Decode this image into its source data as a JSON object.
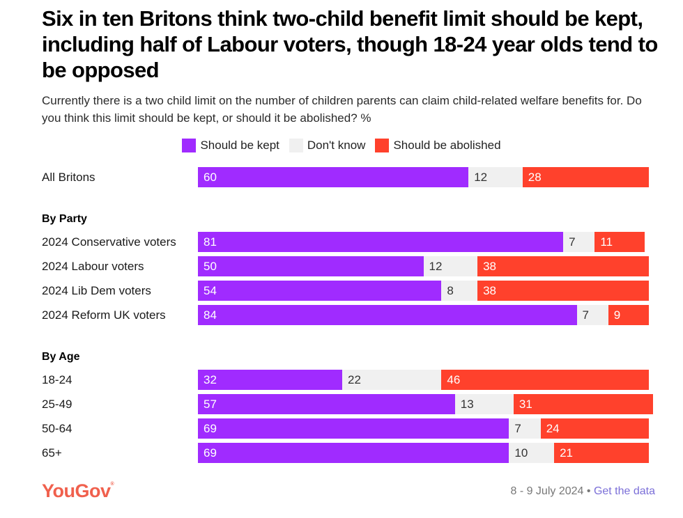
{
  "header": {
    "title": "Six in ten Britons think two-child benefit limit should be kept, including half of Labour voters, though 18-24 year olds tend to be opposed",
    "subtitle": "Currently there is a two child limit on the number of children parents can claim child-related welfare benefits for. Do you think this limit should be kept, or should it be abolished? %"
  },
  "colors": {
    "kept": "#a02bff",
    "dont_know": "#f0f0f0",
    "abolished": "#ff412c",
    "brand": "#f0604d",
    "link": "#7b6fd8"
  },
  "chart_data": {
    "type": "bar",
    "orientation": "horizontal",
    "stacked": true,
    "title": "Six in ten Britons think two-child benefit limit should be kept, including half of Labour voters, though 18-24 year olds tend to be opposed",
    "xlabel": "",
    "ylabel": "",
    "unit": "%",
    "xlim": [
      0,
      100
    ],
    "grid": false,
    "legend_position": "top-center",
    "legend": [
      "Should be kept",
      "Don't know",
      "Should be abolished"
    ],
    "groups": [
      {
        "heading": "",
        "rows": [
          {
            "label": "All Britons",
            "values": [
              60,
              12,
              28
            ]
          }
        ]
      },
      {
        "heading": "By Party",
        "rows": [
          {
            "label": "2024 Conservative voters",
            "values": [
              81,
              7,
              11
            ]
          },
          {
            "label": "2024 Labour voters",
            "values": [
              50,
              12,
              38
            ]
          },
          {
            "label": "2024 Lib Dem voters",
            "values": [
              54,
              8,
              38
            ]
          },
          {
            "label": "2024 Reform UK voters",
            "values": [
              84,
              7,
              9
            ]
          }
        ]
      },
      {
        "heading": "By Age",
        "rows": [
          {
            "label": "18-24",
            "values": [
              32,
              22,
              46
            ]
          },
          {
            "label": "25-49",
            "values": [
              57,
              13,
              31
            ]
          },
          {
            "label": "50-64",
            "values": [
              69,
              7,
              24
            ]
          },
          {
            "label": "65+",
            "values": [
              69,
              10,
              21
            ]
          }
        ]
      }
    ]
  },
  "footer": {
    "logo": "YouGov",
    "logo_mark": "®",
    "date": "8 - 9 July 2024",
    "separator": "•",
    "link_label": "Get the data"
  }
}
